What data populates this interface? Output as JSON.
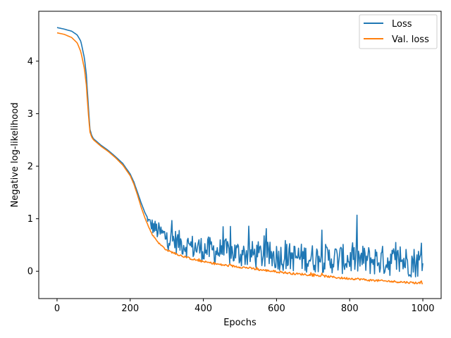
{
  "chart_data": {
    "type": "line",
    "title": "",
    "xlabel": "Epochs",
    "ylabel": "Negative log-likelihood",
    "xlim": [
      -50,
      1050
    ],
    "ylim": [
      -0.52,
      4.95
    ],
    "xticks": [
      0,
      200,
      400,
      600,
      800,
      1000
    ],
    "yticks": [
      0,
      1,
      2,
      3,
      4
    ],
    "grid": false,
    "legend_position": "top-right",
    "series": [
      {
        "name": "Loss",
        "color": "#1f77b4",
        "points": [
          [
            0,
            4.64
          ],
          [
            20,
            4.61
          ],
          [
            40,
            4.57
          ],
          [
            55,
            4.5
          ],
          [
            65,
            4.38
          ],
          [
            75,
            4.05
          ],
          [
            80,
            3.75
          ],
          [
            85,
            3.2
          ],
          [
            90,
            2.7
          ],
          [
            95,
            2.58
          ],
          [
            100,
            2.52
          ],
          [
            120,
            2.4
          ],
          [
            140,
            2.3
          ],
          [
            160,
            2.18
          ],
          [
            180,
            2.05
          ],
          [
            200,
            1.85
          ],
          [
            210,
            1.7
          ],
          [
            220,
            1.5
          ],
          [
            230,
            1.3
          ],
          [
            240,
            1.12
          ],
          [
            250,
            0.95
          ],
          [
            260,
            0.85
          ],
          [
            280,
            0.72
          ],
          [
            300,
            0.62
          ],
          [
            325,
            0.55
          ],
          [
            350,
            0.48
          ],
          [
            375,
            0.43
          ],
          [
            400,
            0.4
          ],
          [
            425,
            0.37
          ],
          [
            450,
            0.35
          ],
          [
            475,
            0.33
          ],
          [
            500,
            0.31
          ],
          [
            525,
            0.3
          ],
          [
            550,
            0.28
          ],
          [
            575,
            0.27
          ],
          [
            600,
            0.26
          ],
          [
            625,
            0.25
          ],
          [
            650,
            0.24
          ],
          [
            675,
            0.23
          ],
          [
            700,
            0.22
          ],
          [
            725,
            0.22
          ],
          [
            750,
            0.21
          ],
          [
            775,
            0.2
          ],
          [
            800,
            0.2
          ],
          [
            825,
            0.19
          ],
          [
            850,
            0.18
          ],
          [
            875,
            0.18
          ],
          [
            900,
            0.17
          ],
          [
            925,
            0.17
          ],
          [
            950,
            0.16
          ],
          [
            975,
            0.15
          ],
          [
            1000,
            0.14
          ]
        ],
        "noise": [
          [
            0,
            0
          ],
          [
            240,
            0
          ],
          [
            260,
            0.15
          ],
          [
            300,
            0.22
          ],
          [
            400,
            0.25
          ],
          [
            600,
            0.27
          ],
          [
            1000,
            0.3
          ]
        ]
      },
      {
        "name": "Val. loss",
        "color": "#ff7f0e",
        "points": [
          [
            0,
            4.54
          ],
          [
            20,
            4.51
          ],
          [
            40,
            4.45
          ],
          [
            55,
            4.35
          ],
          [
            65,
            4.18
          ],
          [
            75,
            3.85
          ],
          [
            80,
            3.55
          ],
          [
            85,
            3.05
          ],
          [
            90,
            2.65
          ],
          [
            95,
            2.55
          ],
          [
            100,
            2.5
          ],
          [
            120,
            2.38
          ],
          [
            140,
            2.28
          ],
          [
            160,
            2.16
          ],
          [
            180,
            2.02
          ],
          [
            200,
            1.82
          ],
          [
            210,
            1.66
          ],
          [
            220,
            1.45
          ],
          [
            230,
            1.22
          ],
          [
            240,
            1.02
          ],
          [
            250,
            0.85
          ],
          [
            260,
            0.7
          ],
          [
            280,
            0.52
          ],
          [
            300,
            0.4
          ],
          [
            325,
            0.33
          ],
          [
            350,
            0.27
          ],
          [
            375,
            0.22
          ],
          [
            400,
            0.18
          ],
          [
            425,
            0.15
          ],
          [
            450,
            0.12
          ],
          [
            475,
            0.1
          ],
          [
            500,
            0.08
          ],
          [
            525,
            0.06
          ],
          [
            550,
            0.03
          ],
          [
            575,
            0.01
          ],
          [
            600,
            -0.01
          ],
          [
            625,
            -0.03
          ],
          [
            650,
            -0.05
          ],
          [
            675,
            -0.06
          ],
          [
            700,
            -0.08
          ],
          [
            725,
            -0.09
          ],
          [
            750,
            -0.11
          ],
          [
            775,
            -0.13
          ],
          [
            800,
            -0.14
          ],
          [
            825,
            -0.15
          ],
          [
            850,
            -0.17
          ],
          [
            875,
            -0.18
          ],
          [
            900,
            -0.19
          ],
          [
            925,
            -0.2
          ],
          [
            950,
            -0.21
          ],
          [
            975,
            -0.22
          ],
          [
            1000,
            -0.23
          ]
        ],
        "noise": [
          [
            0,
            0
          ],
          [
            240,
            0
          ],
          [
            270,
            0.015
          ],
          [
            400,
            0.02
          ],
          [
            1000,
            0.02
          ]
        ]
      }
    ]
  }
}
